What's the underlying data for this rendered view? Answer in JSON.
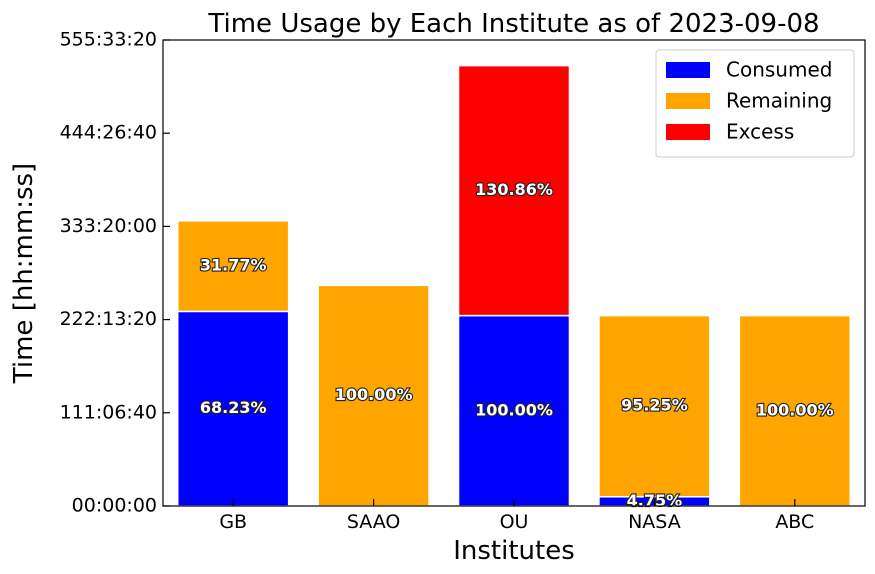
{
  "chart_data": {
    "type": "bar",
    "stacked": true,
    "title": "Time Usage by Each Institute as of 2023-09-08",
    "xlabel": "Institutes",
    "ylabel": "Time [hh:mm:ss]",
    "categories": [
      "GB",
      "SAAO",
      "OU",
      "NASA",
      "ABC"
    ],
    "y_unit": "hours",
    "ylim": [
      0,
      555.5556
    ],
    "yticks": [
      {
        "value": 0,
        "label": "00:00:00"
      },
      {
        "value": 111.1111,
        "label": "111:06:40"
      },
      {
        "value": 222.2222,
        "label": "222:13:20"
      },
      {
        "value": 333.3333,
        "label": "333:20:00"
      },
      {
        "value": 444.4444,
        "label": "444:26:40"
      },
      {
        "value": 555.5556,
        "label": "555:33:20"
      }
    ],
    "series": [
      {
        "name": "Consumed",
        "color": "#0000ff",
        "values": [
          232,
          0,
          227,
          11,
          0
        ],
        "labels": [
          "68.23%",
          "",
          "100.00%",
          "4.75%",
          ""
        ]
      },
      {
        "name": "Remaining",
        "color": "#ffa500",
        "values": [
          108,
          263,
          0,
          216,
          227
        ],
        "labels": [
          "31.77%",
          "100.00%",
          "",
          "95.25%",
          "100.00%"
        ]
      },
      {
        "name": "Excess",
        "color": "#ff0000",
        "values": [
          0,
          0,
          298,
          0,
          0
        ],
        "labels": [
          "",
          "",
          "130.86%",
          "",
          ""
        ]
      }
    ],
    "legend_position": "top-right",
    "grid": false
  }
}
